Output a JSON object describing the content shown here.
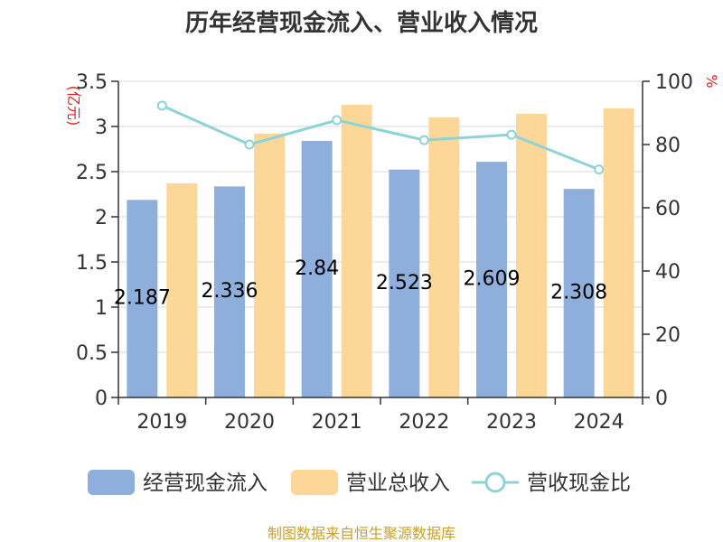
{
  "chart_data": {
    "type": "bar",
    "title": "历年经营现金流入、营业收入情况",
    "categories": [
      "2019",
      "2020",
      "2021",
      "2022",
      "2023",
      "2024"
    ],
    "series": [
      {
        "name": "经营现金流入",
        "type": "bar",
        "axis": "left",
        "color": "#8eaedb",
        "values": [
          2.187,
          2.336,
          2.84,
          2.523,
          2.609,
          2.308
        ],
        "data_labels": [
          "2.187",
          "2.336",
          "2.84",
          "2.523",
          "2.609",
          "2.308"
        ]
      },
      {
        "name": "营业总收入",
        "type": "bar",
        "axis": "left",
        "color": "#fdd797",
        "values": [
          2.37,
          2.92,
          3.24,
          3.1,
          3.14,
          3.2
        ]
      },
      {
        "name": "营收现金比",
        "type": "line",
        "axis": "right",
        "color": "#8dd3d8",
        "values": [
          92.3,
          80.0,
          87.7,
          81.4,
          83.1,
          72.1
        ]
      }
    ],
    "y_left": {
      "label": "(亿元)",
      "ylim": [
        0,
        3.5
      ],
      "ticks": [
        "0",
        "0.5",
        "1",
        "1.5",
        "2",
        "2.5",
        "3",
        "3.5"
      ]
    },
    "y_right": {
      "label": "%",
      "ylim": [
        0,
        100
      ],
      "ticks": [
        "0",
        "20",
        "40",
        "60",
        "80",
        "100"
      ]
    },
    "grid": true,
    "legend_position": "bottom"
  },
  "source": "制图数据来自恒生聚源数据库"
}
